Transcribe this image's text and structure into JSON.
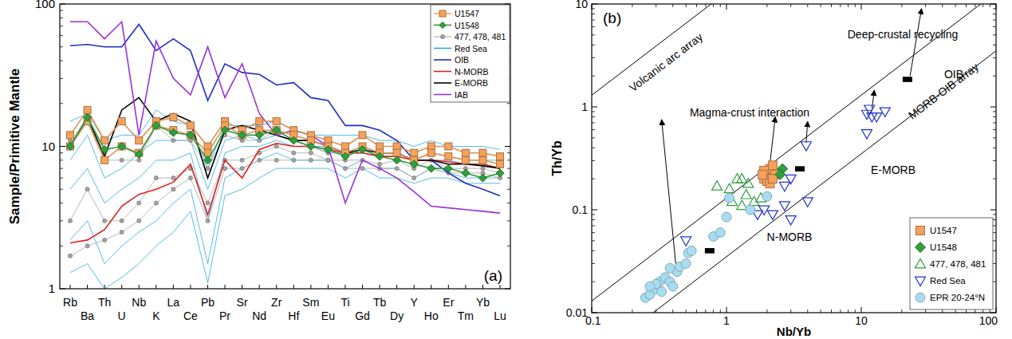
{
  "chart_data": [
    {
      "type": "line",
      "panel_label": "(a)",
      "y_label": "Sample/Primitive Mantle",
      "log": "y",
      "ylim": [
        1,
        100
      ],
      "yticks": [
        1,
        10,
        100
      ],
      "legend": "top-right",
      "categories": [
        "Rb",
        "Ba",
        "Th",
        "U",
        "Nb",
        "K",
        "La",
        "Ce",
        "Pb",
        "Pr",
        "Sr",
        "Nd",
        "Zr",
        "Hf",
        "Sm",
        "Eu",
        "Ti",
        "Gd",
        "Tb",
        "Dy",
        "Y",
        "Ho",
        "Er",
        "Tm",
        "Yb",
        "Lu"
      ],
      "series": [
        {
          "name": "Red Sea",
          "color": "#29abe2",
          "marker": "none",
          "values": [
            [
              2.2,
              3,
              1.5,
              2,
              2.5,
              3,
              4,
              5,
              1.5,
              6,
              7,
              8,
              9,
              8,
              8,
              8,
              7,
              8,
              7,
              7,
              6,
              7,
              6.5,
              6,
              6,
              6
            ],
            [
              1.3,
              1.5,
              1,
              1.2,
              1.5,
              2,
              2.5,
              3.5,
              1.1,
              4.5,
              5,
              6,
              7,
              7,
              7,
              7,
              6,
              7,
              6,
              6,
              5.5,
              6,
              6,
              5.5,
              5.5,
              5.5
            ],
            [
              15,
              17,
              11,
              12,
              12,
              18,
              15,
              14,
              7,
              14,
              14,
              14,
              15,
              13,
              12,
              12,
              12,
              12,
              11,
              11,
              10,
              11,
              10,
              10,
              10,
              9.5
            ],
            [
              5,
              7,
              4,
              5,
              6,
              8,
              8,
              9,
              3,
              9,
              10,
              10,
              11,
              10,
              10,
              9,
              9,
              9,
              8.5,
              8.5,
              8,
              8,
              8,
              7.5,
              7.5,
              7
            ],
            [
              8,
              12,
              6,
              7,
              9,
              11,
              11,
              11,
              5,
              11,
              12,
              11,
              12,
              11,
              10,
              10,
              9,
              10,
              9,
              9,
              8,
              9,
              8.5,
              8,
              8,
              8
            ]
          ]
        },
        {
          "name": "477, 478, 481",
          "color": "#a6a6a6",
          "marker": "circle",
          "values": [
            [
              11,
              15,
              8,
              8,
              8,
              14,
              11,
              11,
              7,
              12,
              11,
              11,
              13,
              11,
              10,
              9,
              9,
              10,
              9,
              9,
              8,
              9,
              8.5,
              8,
              8,
              7.5
            ],
            [
              3,
              5,
              3,
              3,
              4,
              6,
              6,
              7,
              4,
              8,
              8,
              9,
              10,
              9,
              9,
              8,
              8,
              8,
              7.5,
              8,
              7,
              8,
              7,
              7,
              7,
              6.5
            ],
            [
              1.7,
              2,
              2.2,
              2.5,
              3,
              4,
              5,
              6,
              3,
              7,
              7,
              8,
              8,
              8,
              8,
              8,
              7,
              7,
              7,
              7,
              6,
              7,
              6.5,
              6.5,
              6.5,
              6
            ]
          ]
        },
        {
          "name": "OIB",
          "color": "#1f2fc4",
          "marker": "none",
          "values": [
            [
              51,
              52,
              50,
              50,
              72,
              47,
              57,
              47,
              21,
              38,
              33,
              32,
              27,
              28,
              22,
              21,
              14,
              14,
              13,
              11,
              8,
              8,
              6.5,
              5.5,
              5,
              4.5
            ]
          ]
        },
        {
          "name": "N-MORB",
          "color": "#e02020",
          "marker": "none",
          "values": [
            [
              2.1,
              2.2,
              2.6,
              3.8,
              4.6,
              5,
              5.6,
              7.5,
              3.3,
              8,
              6,
              9.5,
              10.5,
              10,
              10,
              9.5,
              9,
              9,
              8.5,
              8.5,
              8,
              8,
              7.8,
              7.5,
              7.5,
              7
            ]
          ]
        },
        {
          "name": "E-MORB",
          "color": "#000000",
          "marker": "none",
          "values": [
            [
              10,
              16,
              8.5,
              18,
              22,
              15,
              17,
              15,
              6,
              13,
              14,
              13,
              12,
              11,
              11,
              10,
              9,
              9.5,
              9,
              9,
              8,
              8,
              7.5,
              7.5,
              7.3,
              7
            ]
          ]
        },
        {
          "name": "IAB",
          "color": "#9b30d9",
          "marker": "none",
          "values": [
            [
              75,
              75,
              57,
              75,
              12,
              55,
              30,
              23,
              50,
              22,
              38,
              17,
              12,
              13,
              12,
              10,
              4,
              8,
              7,
              6,
              4.8,
              3.8,
              3.7,
              3.6,
              3.5,
              3.4
            ]
          ]
        },
        {
          "name": "U1547",
          "color": "#f5a25d",
          "marker": "square",
          "values": [
            [
              12,
              18,
              11,
              15,
              11,
              15,
              16,
              14,
              10,
              15,
              13,
              15,
              15,
              13,
              12,
              11,
              10,
              12,
              10,
              10,
              9,
              10,
              10,
              9,
              9,
              8.5
            ],
            [
              10,
              15,
              8,
              10,
              9,
              14,
              13,
              12,
              9,
              14,
              12,
              13,
              13,
              12,
              11,
              10,
              9,
              10,
              9,
              9,
              8,
              9,
              8.5,
              8,
              8,
              7.5
            ]
          ]
        },
        {
          "name": "U1548",
          "color": "#2e9e3e",
          "marker": "diamond",
          "values": [
            [
              10,
              16,
              9.5,
              10,
              8.8,
              14,
              12.5,
              12,
              8,
              13,
              12,
              12,
              13,
              11,
              10,
              9.5,
              8.5,
              9.5,
              8.5,
              8,
              7.5,
              7,
              7,
              6.5,
              6,
              6.5
            ]
          ]
        }
      ]
    },
    {
      "type": "scatter",
      "panel_label": "(b)",
      "x_label": "Nb/Yb",
      "y_label": "Th/Yb",
      "log": true,
      "xlim": [
        0.1,
        100
      ],
      "ylim": [
        0.01,
        10
      ],
      "xticks": [
        0.1,
        1,
        10,
        100
      ],
      "yticks": [
        0.01,
        0.1,
        1,
        10
      ],
      "legend": "bottom-right",
      "series": [
        {
          "name": "U1547",
          "color": "#f5a25d",
          "marker": "square",
          "x": [
            1.9,
            2.0,
            2.1,
            2.2,
            1.9,
            2.0,
            2.3,
            2.1,
            1.85,
            2.2
          ],
          "y": [
            0.2,
            0.22,
            0.25,
            0.27,
            0.24,
            0.19,
            0.22,
            0.18,
            0.22,
            0.2
          ]
        },
        {
          "name": "U1548",
          "color": "#2e9e3e",
          "marker": "diamond",
          "x": [
            2.6,
            2.5
          ],
          "y": [
            0.25,
            0.22
          ]
        },
        {
          "name": "477, 478, 481",
          "color": "#2e9e3e",
          "marker": "open-triangle-up",
          "x": [
            0.85,
            1.05,
            1.3,
            1.45,
            1.1,
            1.3,
            1.6,
            1.4,
            1.8,
            1.2
          ],
          "y": [
            0.17,
            0.16,
            0.2,
            0.18,
            0.12,
            0.11,
            0.12,
            0.14,
            0.13,
            0.2
          ]
        },
        {
          "name": "Red Sea",
          "color": "#2233cc",
          "marker": "open-triangle-down",
          "x": [
            0.5,
            3.9,
            1.7,
            2.2,
            2.7,
            1.9,
            3,
            2.7,
            4,
            11,
            11.5,
            12,
            13,
            15,
            11,
            3
          ],
          "y": [
            0.05,
            0.42,
            0.09,
            0.09,
            0.11,
            0.1,
            0.2,
            0.17,
            0.12,
            0.85,
            0.95,
            0.8,
            0.8,
            0.9,
            0.55,
            0.08
          ]
        },
        {
          "name": "EPR 20-24°N",
          "color": "#a8dcf0",
          "marker": "circle",
          "x": [
            0.25,
            0.27,
            0.3,
            0.32,
            0.35,
            0.3,
            0.27,
            0.38,
            0.4,
            0.43,
            0.45,
            0.5,
            0.52,
            0.55,
            0.38,
            0.8,
            1.0,
            1.05,
            1.5,
            0.9,
            2.0,
            0.33
          ],
          "y": [
            0.014,
            0.015,
            0.017,
            0.02,
            0.022,
            0.019,
            0.018,
            0.02,
            0.018,
            0.025,
            0.028,
            0.03,
            0.038,
            0.04,
            0.027,
            0.055,
            0.085,
            0.13,
            0.1,
            0.06,
            0.135,
            0.016
          ]
        },
        {
          "color": "#000000",
          "marker": "rect",
          "x": [
            0.75,
            3.5,
            22
          ],
          "y": [
            0.04,
            0.25,
            1.85
          ]
        }
      ],
      "reference_lines": [
        [
          0.1,
          1.3,
          100,
          1300
        ],
        [
          0.1,
          0.013,
          100,
          13
        ],
        [
          0.1,
          0.0035,
          100,
          3.5
        ]
      ],
      "arrows": [
        [
          0.42,
          0.03,
          0.33,
          0.75
        ],
        [
          2.1,
          0.28,
          2.3,
          0.8
        ],
        [
          23,
          2.0,
          28,
          9
        ],
        [
          3.9,
          0.45,
          4.0,
          0.72
        ],
        [
          12,
          0.97,
          12.5,
          1.45
        ]
      ],
      "annotations": [
        "Volcanic arc array",
        "Magma-crust interaction",
        "Deep-crustal recycling",
        "OIB",
        "MORB-OIB array",
        "E-MORB",
        "N-MORB"
      ]
    }
  ]
}
